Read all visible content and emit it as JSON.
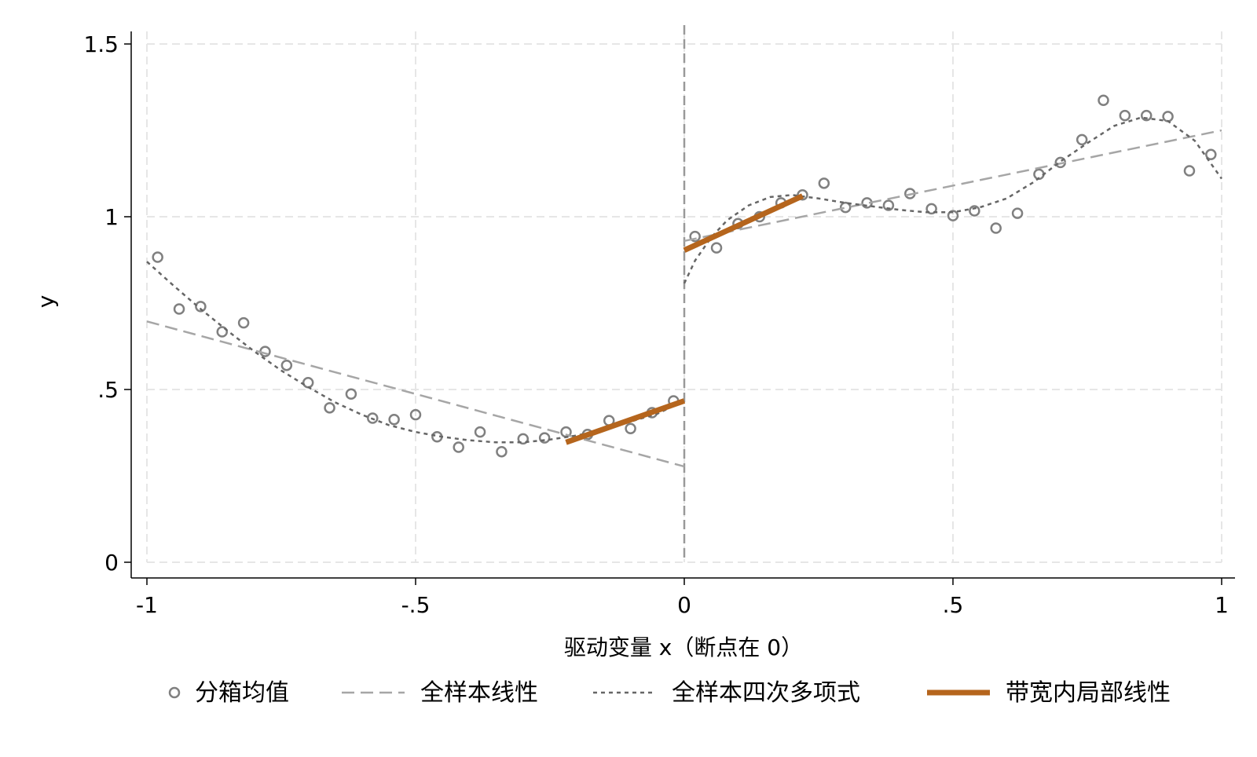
{
  "chart_data": {
    "type": "scatter",
    "title": "",
    "xlabel": "驱动变量 x（断点在 0）",
    "ylabel": "y",
    "xlim": [
      -1,
      1
    ],
    "ylim": [
      0,
      1.5
    ],
    "x_ticks": [
      {
        "value": -1,
        "label": "-1"
      },
      {
        "value": -0.5,
        "label": "-.5"
      },
      {
        "value": 0,
        "label": "0"
      },
      {
        "value": 0.5,
        "label": ".5"
      },
      {
        "value": 1,
        "label": "1"
      }
    ],
    "y_ticks": [
      {
        "value": 0,
        "label": "0"
      },
      {
        "value": 0.5,
        "label": ".5"
      },
      {
        "value": 1,
        "label": "1"
      },
      {
        "value": 1.5,
        "label": "1.5"
      }
    ],
    "grid": true,
    "cutoff": 0,
    "legend_position": "bottom",
    "colors": {
      "bin_points": "#808080",
      "linear_fit": "#a6a6a6",
      "quartic_fit": "#666666",
      "local_linear": "#b5651d",
      "grid": "#e6e6e6",
      "cutoff_line": "#999999"
    },
    "legend": [
      {
        "label": "分箱均值",
        "key": "bins"
      },
      {
        "label": "全样本线性",
        "key": "linear"
      },
      {
        "label": "全样本四次多项式",
        "key": "quartic"
      },
      {
        "label": "带宽内局部线性",
        "key": "local"
      }
    ],
    "series": [
      {
        "name": "分箱均值",
        "kind": "points",
        "points": [
          [
            -0.98,
            0.883
          ],
          [
            -0.94,
            0.733
          ],
          [
            -0.9,
            0.74
          ],
          [
            -0.86,
            0.667
          ],
          [
            -0.82,
            0.693
          ],
          [
            -0.78,
            0.61
          ],
          [
            -0.74,
            0.57
          ],
          [
            -0.7,
            0.52
          ],
          [
            -0.66,
            0.447
          ],
          [
            -0.62,
            0.487
          ],
          [
            -0.58,
            0.417
          ],
          [
            -0.54,
            0.413
          ],
          [
            -0.5,
            0.427
          ],
          [
            -0.46,
            0.363
          ],
          [
            -0.42,
            0.333
          ],
          [
            -0.38,
            0.377
          ],
          [
            -0.34,
            0.32
          ],
          [
            -0.3,
            0.357
          ],
          [
            -0.26,
            0.36
          ],
          [
            -0.22,
            0.377
          ],
          [
            -0.18,
            0.37
          ],
          [
            -0.14,
            0.41
          ],
          [
            -0.1,
            0.387
          ],
          [
            -0.06,
            0.433
          ],
          [
            -0.02,
            0.467
          ],
          [
            0.02,
            0.943
          ],
          [
            0.06,
            0.91
          ],
          [
            0.1,
            0.98
          ],
          [
            0.14,
            1.0
          ],
          [
            0.18,
            1.04
          ],
          [
            0.22,
            1.063
          ],
          [
            0.26,
            1.097
          ],
          [
            0.3,
            1.027
          ],
          [
            0.34,
            1.04
          ],
          [
            0.38,
            1.033
          ],
          [
            0.42,
            1.067
          ],
          [
            0.46,
            1.023
          ],
          [
            0.5,
            1.003
          ],
          [
            0.54,
            1.017
          ],
          [
            0.58,
            0.967
          ],
          [
            0.62,
            1.01
          ],
          [
            0.66,
            1.123
          ],
          [
            0.7,
            1.157
          ],
          [
            0.74,
            1.223
          ],
          [
            0.78,
            1.337
          ],
          [
            0.82,
            1.293
          ],
          [
            0.86,
            1.293
          ],
          [
            0.9,
            1.29
          ],
          [
            0.94,
            1.133
          ],
          [
            0.98,
            1.18
          ]
        ]
      },
      {
        "name": "全样本线性",
        "kind": "line",
        "segments": [
          [
            [
              -1,
              0.697
            ],
            [
              0,
              0.277
            ]
          ],
          [
            [
              0,
              0.93
            ],
            [
              1,
              1.25
            ]
          ]
        ]
      },
      {
        "name": "全样本四次多项式",
        "kind": "line",
        "segments": [
          [
            [
              -1,
              0.87
            ],
            [
              -0.95,
              0.8
            ],
            [
              -0.9,
              0.733
            ],
            [
              -0.85,
              0.67
            ],
            [
              -0.8,
              0.61
            ],
            [
              -0.75,
              0.555
            ],
            [
              -0.7,
              0.507
            ],
            [
              -0.65,
              0.463
            ],
            [
              -0.6,
              0.427
            ],
            [
              -0.55,
              0.397
            ],
            [
              -0.5,
              0.377
            ],
            [
              -0.45,
              0.363
            ],
            [
              -0.4,
              0.353
            ],
            [
              -0.35,
              0.347
            ],
            [
              -0.3,
              0.347
            ],
            [
              -0.25,
              0.355
            ],
            [
              -0.2,
              0.367
            ],
            [
              -0.15,
              0.383
            ],
            [
              -0.1,
              0.407
            ],
            [
              -0.05,
              0.43
            ],
            [
              0,
              0.467
            ]
          ],
          [
            [
              0,
              0.807
            ],
            [
              0.02,
              0.873
            ],
            [
              0.05,
              0.94
            ],
            [
              0.08,
              0.99
            ],
            [
              0.12,
              1.033
            ],
            [
              0.16,
              1.057
            ],
            [
              0.2,
              1.063
            ],
            [
              0.25,
              1.053
            ],
            [
              0.3,
              1.04
            ],
            [
              0.35,
              1.03
            ],
            [
              0.4,
              1.02
            ],
            [
              0.45,
              1.013
            ],
            [
              0.5,
              1.013
            ],
            [
              0.55,
              1.027
            ],
            [
              0.6,
              1.053
            ],
            [
              0.65,
              1.1
            ],
            [
              0.7,
              1.16
            ],
            [
              0.75,
              1.213
            ],
            [
              0.8,
              1.263
            ],
            [
              0.85,
              1.287
            ],
            [
              0.9,
              1.277
            ],
            [
              0.95,
              1.22
            ],
            [
              1,
              1.11
            ]
          ]
        ]
      },
      {
        "name": "带宽内局部线性",
        "kind": "line",
        "segments": [
          [
            [
              -0.22,
              0.347
            ],
            [
              0,
              0.467
            ]
          ],
          [
            [
              0,
              0.903
            ],
            [
              0.22,
              1.06
            ]
          ]
        ]
      }
    ]
  }
}
